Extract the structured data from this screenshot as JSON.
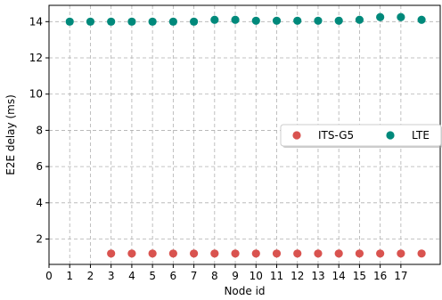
{
  "chart_data": {
    "type": "scatter",
    "xlabel": "Node id",
    "ylabel": "E2E delay (ms)",
    "xlim": [
      0,
      18.9
    ],
    "ylim": [
      0.6,
      14.9
    ],
    "xticks": [
      0,
      1,
      2,
      3,
      4,
      5,
      6,
      7,
      8,
      9,
      10,
      11,
      12,
      13,
      14,
      15,
      16,
      17
    ],
    "yticks": [
      2,
      4,
      6,
      8,
      10,
      12,
      14
    ],
    "grid": true,
    "legend": {
      "position": "center-right",
      "columns": 2
    },
    "series": [
      {
        "name": "ITS-G5",
        "color": "#d9534f",
        "x": [
          3,
          4,
          5,
          6,
          7,
          8,
          9,
          10,
          11,
          12,
          13,
          14,
          15,
          16,
          17,
          18
        ],
        "y": [
          1.2,
          1.2,
          1.2,
          1.2,
          1.2,
          1.2,
          1.2,
          1.2,
          1.2,
          1.2,
          1.2,
          1.2,
          1.2,
          1.2,
          1.2,
          1.2
        ]
      },
      {
        "name": "LTE",
        "color": "#00897b",
        "x": [
          1,
          2,
          3,
          4,
          5,
          6,
          7,
          8,
          9,
          10,
          11,
          12,
          13,
          14,
          15,
          16,
          17,
          18
        ],
        "y": [
          14.0,
          14.0,
          14.0,
          14.0,
          14.0,
          14.0,
          14.0,
          14.1,
          14.1,
          14.05,
          14.05,
          14.05,
          14.05,
          14.05,
          14.1,
          14.25,
          14.25,
          14.1
        ]
      }
    ]
  }
}
